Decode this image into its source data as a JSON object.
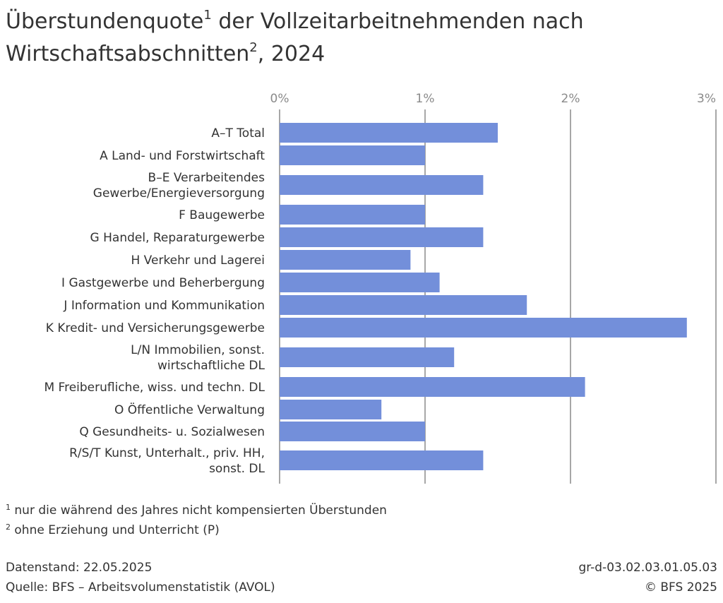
{
  "title": {
    "line1": "Überstundenquote",
    "sup1": "1",
    "line1_rest": " der Vollzeitarbeitnehmenden nach",
    "line2": "Wirtschaftsabschnitten",
    "sup2": "2",
    "line2_rest": ", 2024"
  },
  "chart_data": {
    "type": "bar",
    "orientation": "horizontal",
    "xlim": [
      0,
      3
    ],
    "ticks": [
      "0%",
      "1%",
      "2%",
      "3%"
    ],
    "tick_values": [
      0,
      1,
      2,
      3
    ],
    "grid": true,
    "bar_color": "#738fda",
    "categories": [
      [
        "A–T Total"
      ],
      [
        "A Land- und Forstwirtschaft"
      ],
      [
        "B–E Verarbeitendes",
        "Gewerbe/Energieversorgung"
      ],
      [
        "F Baugewerbe"
      ],
      [
        "G Handel, Reparaturgewerbe"
      ],
      [
        "H Verkehr und Lagerei"
      ],
      [
        "I Gastgewerbe und Beherbergung"
      ],
      [
        "J Information und Kommunikation"
      ],
      [
        "K Kredit- und Versicherungsgewerbe"
      ],
      [
        "L/N Immobilien, sonst.",
        "wirtschaftliche DL"
      ],
      [
        "M Freiberufliche, wiss. und techn. DL"
      ],
      [
        "O Öffentliche Verwaltung"
      ],
      [
        "Q Gesundheits- u. Sozialwesen"
      ],
      [
        "R/S/T Kunst, Unterhalt., priv. HH,",
        "sonst. DL"
      ]
    ],
    "values": [
      1.5,
      1.0,
      1.4,
      1.0,
      1.4,
      0.9,
      1.1,
      1.7,
      2.8,
      1.2,
      2.1,
      0.7,
      1.0,
      1.4
    ]
  },
  "footnotes": [
    {
      "mark": "1",
      "text": " nur die während des Jahres nicht kompensierten Überstunden"
    },
    {
      "mark": "2",
      "text": " ohne Erziehung und Unterricht (P)"
    }
  ],
  "meta": {
    "datenstand": "Datenstand: 22.05.2025",
    "quelle": "Quelle: BFS – Arbeitsvolumenstatistik (AVOL)",
    "id": "gr-d-03.02.03.01.05.03",
    "copyright": "© BFS 2025"
  }
}
